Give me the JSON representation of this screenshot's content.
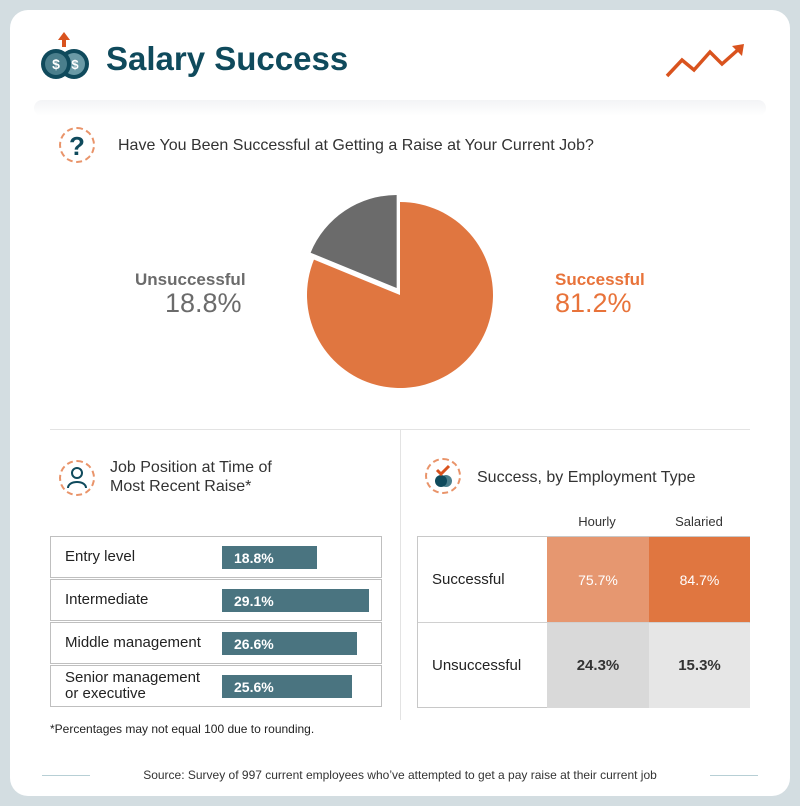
{
  "header": {
    "title": "Salary Success",
    "icon": "coins-up-arrow-icon",
    "trend_icon": "trend-up-arrow-icon"
  },
  "colors": {
    "orange": "#e07640",
    "light_orange": "#e69770",
    "gray": "#6b6b6b",
    "teal": "#4a7480",
    "navy": "#0f4a5c"
  },
  "chart_data": [
    {
      "type": "pie",
      "title": "Have You Been Successful at Getting a Raise at Your Current Job?",
      "slices": [
        {
          "label": "Successful",
          "value": 81.2,
          "display": "81.2%",
          "color": "#e07640"
        },
        {
          "label": "Unsuccessful",
          "value": 18.8,
          "display": "18.8%",
          "color": "#6b6b6b"
        }
      ]
    },
    {
      "type": "bar",
      "title": "Job Position at Time of Most Recent Raise*",
      "categories": [
        "Entry level",
        "Intermediate",
        "Middle management",
        "Senior management or executive"
      ],
      "values": [
        18.8,
        29.1,
        26.6,
        25.6
      ],
      "labels": [
        "18.8%",
        "29.1%",
        "26.6%",
        "25.6%"
      ],
      "footnote": "*Percentages may not equal 100 due to rounding."
    },
    {
      "type": "heatmap",
      "title": "Success, by Employment Type",
      "columns": [
        "Hourly",
        "Salaried"
      ],
      "rows": [
        "Successful",
        "Unsuccessful"
      ],
      "values": [
        [
          75.7,
          84.7
        ],
        [
          24.3,
          15.3
        ]
      ],
      "labels": [
        [
          "75.7%",
          "84.7%"
        ],
        [
          "24.3%",
          "15.3%"
        ]
      ]
    }
  ],
  "footer": {
    "source": "Source: Survey of 997 current employees who’ve attempted to get a pay raise at their current job"
  }
}
